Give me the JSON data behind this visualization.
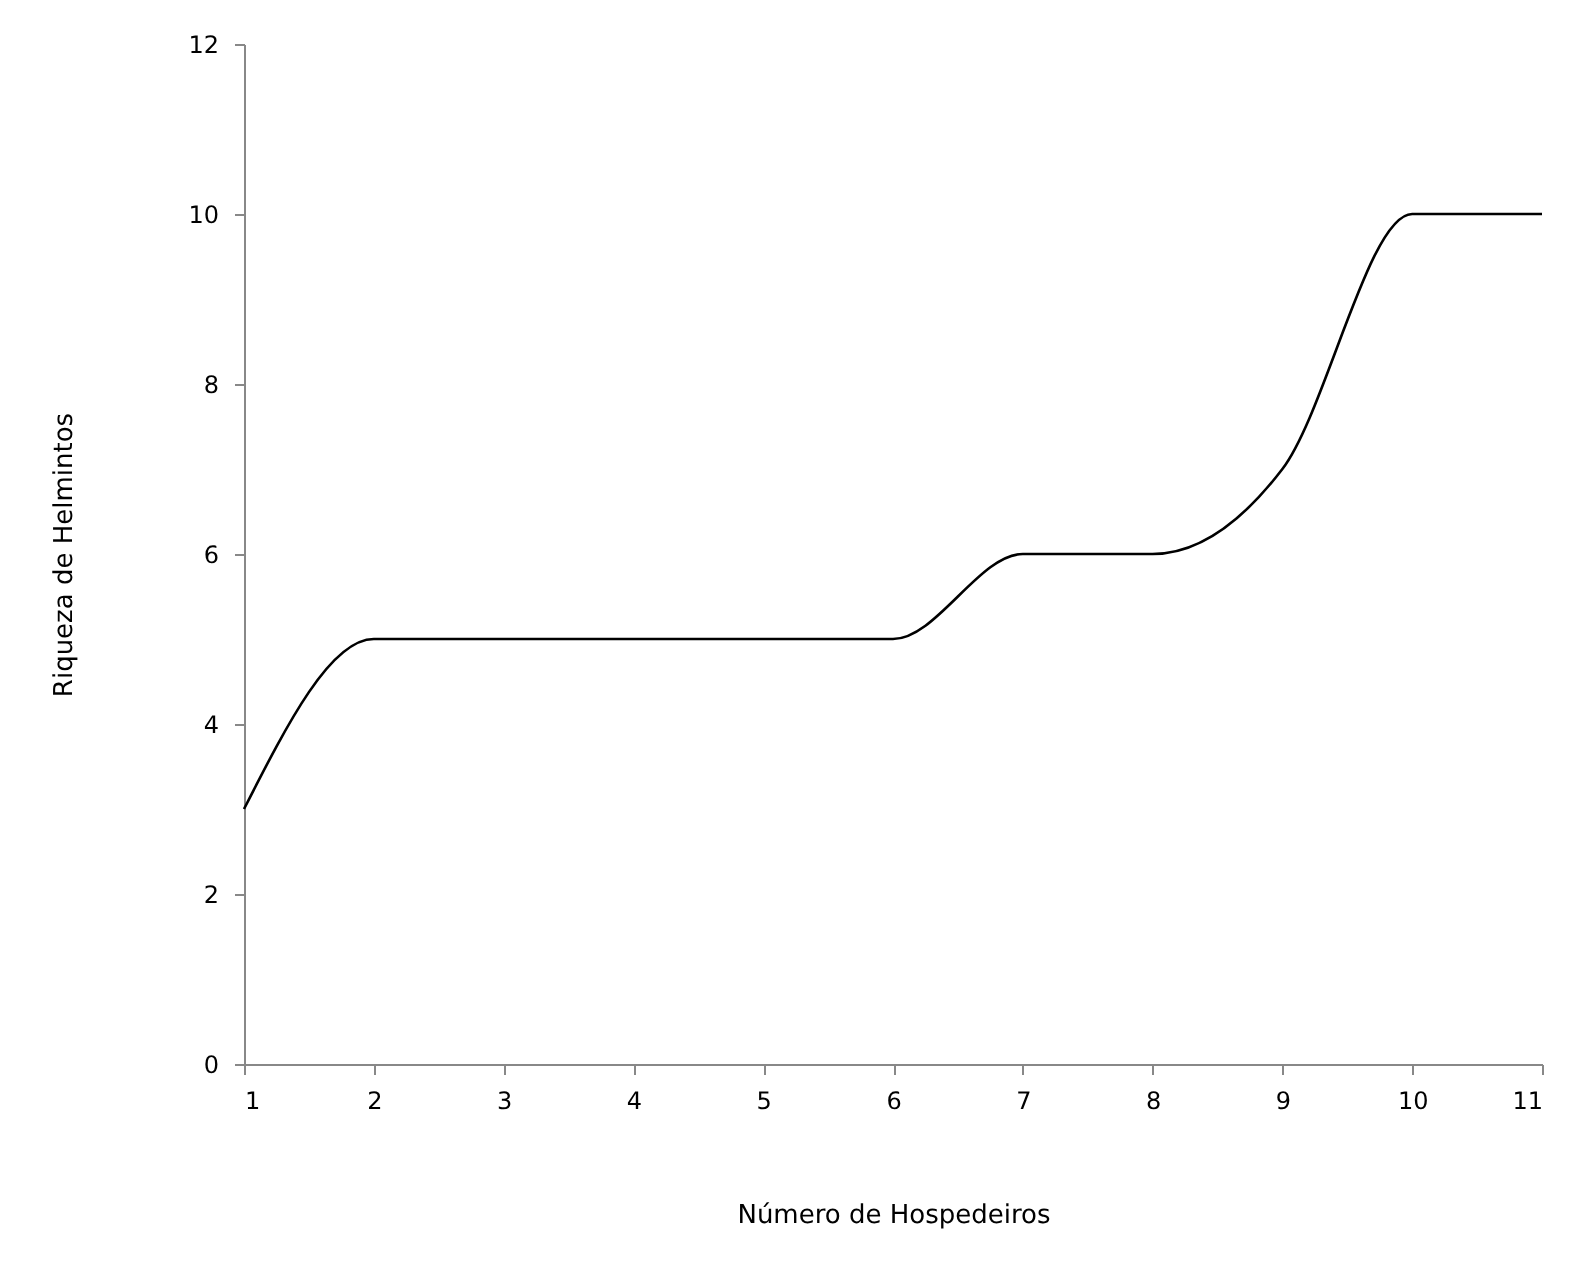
{
  "chart_data": {
    "type": "line",
    "xlabel": "Número de Hospedeiros",
    "ylabel": "Riqueza de Helmintos",
    "x": [
      1,
      2,
      3,
      4,
      5,
      6,
      7,
      8,
      9,
      10,
      11
    ],
    "series": [
      {
        "color": "#000000",
        "values": [
          3,
          5,
          5,
          5,
          5,
          5,
          6,
          6,
          7,
          10,
          10
        ]
      }
    ],
    "xlim": [
      1,
      11
    ],
    "xticks": [
      1,
      2,
      3,
      4,
      5,
      6,
      7,
      8,
      9,
      10,
      11
    ],
    "ylim": [
      0,
      12
    ],
    "yticks": [
      0,
      2,
      4,
      6,
      8,
      10,
      12
    ]
  }
}
